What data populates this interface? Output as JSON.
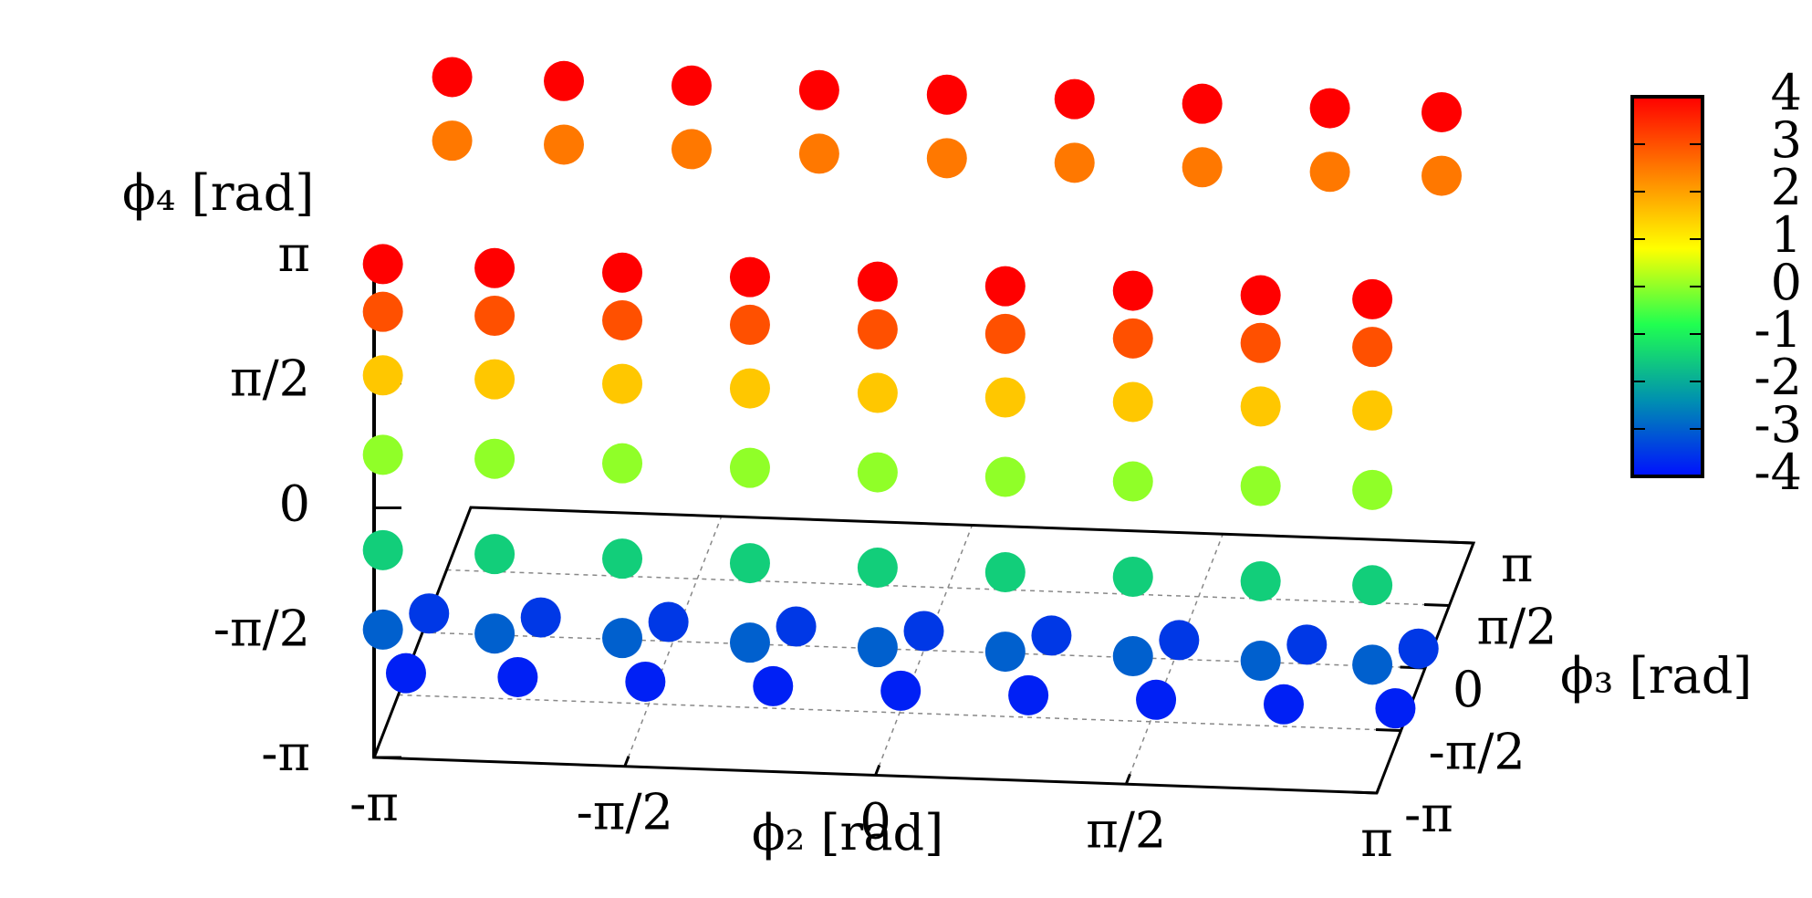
{
  "chart_data": {
    "type": "scatter3d",
    "xlabel": "ϕ₂ [rad]",
    "ylabel": "ϕ₃ [rad]",
    "zlabel": "ϕ₄ [rad]",
    "xlim": [
      -3.14159,
      3.14159
    ],
    "ylim": [
      -3.14159,
      3.14159
    ],
    "zlim": [
      -3.14159,
      3.14159
    ],
    "xticks": [
      {
        "value": -3.14159,
        "label": "-π"
      },
      {
        "value": -1.5708,
        "label": "-π/2"
      },
      0,
      {
        "value": 1.5708,
        "label": "π/2"
      },
      {
        "value": 3.14159,
        "label": "π"
      }
    ],
    "yticks": [
      {
        "value": -3.14159,
        "label": "-π"
      },
      {
        "value": -1.5708,
        "label": "-π/2"
      },
      0,
      {
        "value": 1.5708,
        "label": "π/2"
      },
      {
        "value": 3.14159,
        "label": "π"
      }
    ],
    "zticks": [
      {
        "value": -3.14159,
        "label": "-π"
      },
      {
        "value": -1.5708,
        "label": "-π/2"
      },
      0,
      {
        "value": 1.5708,
        "label": "π/2"
      },
      {
        "value": 3.14159,
        "label": "π"
      }
    ],
    "clim": [
      -4,
      4
    ],
    "cticks": [
      4,
      3,
      2,
      1,
      0,
      -1,
      -2,
      -3,
      -4
    ],
    "colormap": [
      "#0010ff",
      "#0090b0",
      "#20ff50",
      "#ffff00",
      "#ff8000",
      "#ff0000"
    ],
    "grid": true,
    "x": [
      -3.1,
      -2.4,
      -1.6,
      -0.8,
      0,
      0.8,
      1.6,
      2.4,
      3.1,
      -3.1,
      -2.4,
      -1.6,
      -0.8,
      0,
      0.8,
      1.6,
      2.4,
      3.1,
      -3.1,
      -2.4,
      -1.6,
      -0.8,
      0,
      0.8,
      1.6,
      2.4,
      3.1,
      -3.1,
      -2.4,
      -1.6,
      -0.8,
      0,
      0.8,
      1.6,
      2.4,
      3.1,
      -3.1,
      -2.4,
      -1.6,
      -0.8,
      0,
      0.8,
      1.6,
      2.4,
      3.1,
      -3.1,
      -2.4,
      -1.6,
      -0.8,
      0,
      0.8,
      1.6,
      2.4,
      3.1,
      -3.1,
      -2.4,
      -1.6,
      -0.8,
      0,
      0.8,
      1.6,
      2.4,
      3.1,
      -3.1,
      -2.4,
      -1.6,
      -0.8,
      0,
      0.8,
      1.6,
      2.4,
      3.1,
      -3.1,
      -2.4,
      -1.6,
      -0.8,
      0,
      0.8,
      1.6,
      2.4,
      3.1,
      -3.1,
      -2.4,
      -1.6,
      -0.8,
      0,
      0.8,
      1.6,
      2.4,
      3.1
    ],
    "y": [
      1.5,
      1.5,
      1.5,
      1.5,
      1.5,
      1.5,
      1.5,
      1.5,
      1.5,
      1.5,
      1.5,
      1.5,
      1.5,
      1.5,
      1.5,
      1.5,
      1.5,
      1.5,
      0,
      0,
      0,
      0,
      0,
      0,
      0,
      0,
      0,
      -1.5,
      -1.5,
      -1.5,
      -1.5,
      -1.5,
      -1.5,
      -1.5,
      -1.5,
      -1.5,
      -3,
      -3,
      -3,
      -3,
      -3,
      -3,
      -3,
      -3,
      -3,
      -3,
      -3,
      -3,
      -3,
      -3,
      -3,
      -3,
      -3,
      -3,
      -3,
      -3,
      -3,
      -3,
      -3,
      -3,
      -3,
      -3,
      -3,
      -3,
      -3,
      -3,
      -3,
      -3,
      -3,
      -3,
      -3,
      -3,
      -3,
      -3,
      -3,
      -3,
      -3,
      -3,
      -3,
      -3,
      -3,
      -3,
      -3,
      -3,
      -3,
      -3,
      -3,
      -3,
      -3,
      -3
    ],
    "z": [
      3.1,
      3.1,
      3.1,
      3.1,
      3.1,
      3.1,
      3.1,
      3.1,
      3.1,
      2.3,
      2.3,
      2.3,
      2.3,
      2.3,
      2.3,
      2.3,
      2.3,
      2.3,
      -2.9,
      -2.9,
      -2.9,
      -2.9,
      -2.9,
      -2.9,
      -2.9,
      -2.9,
      -2.9,
      -2.9,
      -2.9,
      -2.9,
      -2.9,
      -2.9,
      -2.9,
      -2.9,
      -2.9,
      -2.9,
      -1.6,
      -1.6,
      -1.6,
      -1.6,
      -1.6,
      -1.6,
      -1.6,
      -1.6,
      -1.6,
      -0.6,
      -0.6,
      -0.6,
      -0.6,
      -0.6,
      -0.6,
      -0.6,
      -0.6,
      -0.6,
      0.6,
      0.6,
      0.6,
      0.6,
      0.6,
      0.6,
      0.6,
      0.6,
      0.6,
      1.6,
      1.6,
      1.6,
      1.6,
      1.6,
      1.6,
      1.6,
      1.6,
      1.6,
      2.4,
      2.4,
      2.4,
      2.4,
      2.4,
      2.4,
      2.4,
      2.4,
      2.4,
      3,
      3,
      3,
      3,
      3,
      3,
      3,
      3,
      3
    ],
    "c": [
      4,
      4,
      4,
      4,
      4,
      4,
      4,
      4,
      4,
      2.5,
      2.5,
      2.5,
      2.5,
      2.5,
      2.5,
      2.5,
      2.5,
      2.5,
      -3.5,
      -3.5,
      -3.5,
      -3.5,
      -3.5,
      -3.5,
      -3.5,
      -3.5,
      -3.5,
      -3.8,
      -3.8,
      -3.8,
      -3.8,
      -3.8,
      -3.8,
      -3.8,
      -3.8,
      -3.8,
      -3,
      -3,
      -3,
      -3,
      -3,
      -3,
      -3,
      -3,
      -3,
      -1.5,
      -1.5,
      -1.5,
      -1.5,
      -1.5,
      -1.5,
      -1.5,
      -1.5,
      -1.5,
      0,
      0,
      0,
      0,
      0,
      0,
      0,
      0,
      0,
      1.5,
      1.5,
      1.5,
      1.5,
      1.5,
      1.5,
      1.5,
      1.5,
      1.5,
      3,
      3,
      3,
      3,
      3,
      3,
      3,
      3,
      3,
      4,
      4,
      4,
      4,
      4,
      4,
      4,
      4,
      4
    ]
  }
}
